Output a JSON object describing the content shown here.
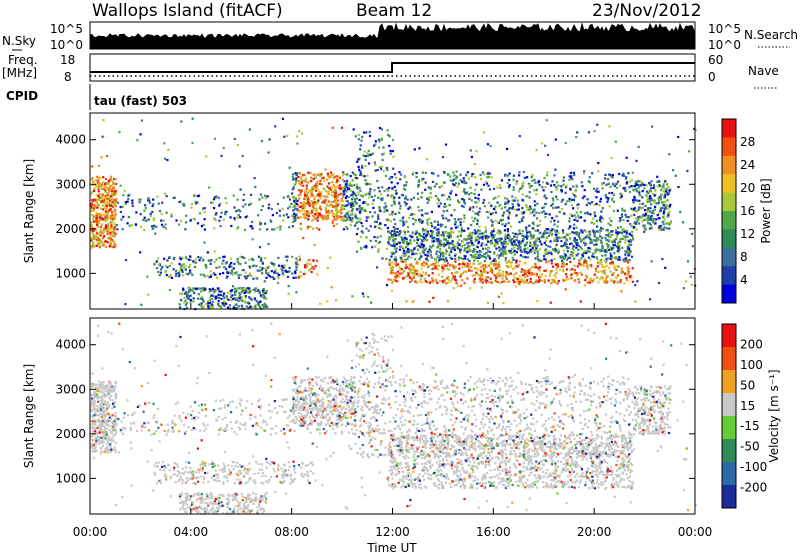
{
  "header": {
    "site": "Wallops Island (fitACF)",
    "beam": "Beam 12",
    "date": "23/Nov/2012"
  },
  "panels": {
    "nsky_label": "N.Sky",
    "nsky_ticks": [
      "10^5",
      "10^0"
    ],
    "nsearch_label": "N.Search",
    "nsearch_ticks": [
      "10^5",
      "10^0"
    ],
    "freq_label": "Freq.",
    "freq_unit": "[MHz]",
    "freq_ticks": [
      "18",
      "8"
    ],
    "nave_label": "Nave",
    "nave_ticks": [
      "60",
      "0"
    ],
    "cpid_label": "CPID",
    "cpid_value": "tau (fast) 503"
  },
  "chart_data": [
    {
      "type": "heatmap",
      "name": "power",
      "ylabel": "Slant Range [km]",
      "yticks": [
        "4000",
        "3000",
        "2000",
        "1000"
      ],
      "ylim": [
        200,
        4600
      ],
      "xlim": [
        0,
        24
      ],
      "colorbar_label": "Power [dB]",
      "colorbar_ticks": [
        "28",
        "24",
        "20",
        "16",
        "12",
        "8",
        "4"
      ],
      "colors": [
        "#0000dd",
        "#1f3fa8",
        "#3a6fa0",
        "#2f8a55",
        "#4fa84a",
        "#a8c83a",
        "#f0c020",
        "#f09020",
        "#f05010",
        "#e81010"
      ]
    },
    {
      "type": "heatmap",
      "name": "velocity",
      "ylabel": "Slant Range [km]",
      "yticks": [
        "4000",
        "3000",
        "2000",
        "1000"
      ],
      "ylim": [
        200,
        4600
      ],
      "xlim": [
        0,
        24
      ],
      "xlabel": "Time UT",
      "xticks": [
        "00:00",
        "04:00",
        "08:00",
        "12:00",
        "16:00",
        "20:00",
        "00:00"
      ],
      "colorbar_label": "Velocity [m s⁻¹]",
      "colorbar_ticks": [
        "200",
        "100",
        "50",
        "15",
        "-15",
        "-50",
        "-100",
        "-200"
      ],
      "colors": [
        "#1a2a9a",
        "#2a6aaa",
        "#2f8a55",
        "#66cc33",
        "#c8c8c8",
        "#f0a020",
        "#f05010",
        "#e81010"
      ]
    }
  ]
}
